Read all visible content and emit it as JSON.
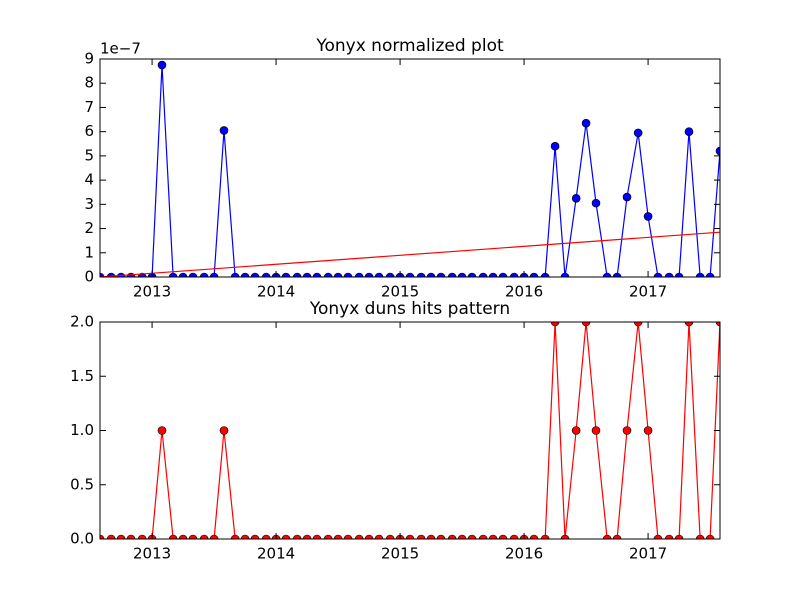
{
  "chart_data": [
    {
      "type": "line",
      "title": "Yonyx normalized plot",
      "y_offset_label": "1e−7",
      "x": [
        2012.58,
        2012.67,
        2012.75,
        2012.83,
        2012.92,
        2013.0,
        2013.08,
        2013.17,
        2013.25,
        2013.33,
        2013.42,
        2013.5,
        2013.58,
        2013.67,
        2013.75,
        2013.83,
        2013.92,
        2014.0,
        2014.08,
        2014.17,
        2014.25,
        2014.33,
        2014.42,
        2014.5,
        2014.58,
        2014.67,
        2014.75,
        2014.83,
        2014.92,
        2015.0,
        2015.08,
        2015.17,
        2015.25,
        2015.33,
        2015.42,
        2015.5,
        2015.58,
        2015.67,
        2015.75,
        2015.83,
        2015.92,
        2016.0,
        2016.08,
        2016.17,
        2016.25,
        2016.33,
        2016.42,
        2016.5,
        2016.58,
        2016.67,
        2016.75,
        2016.83,
        2016.92,
        2017.0,
        2017.08,
        2017.17,
        2017.25,
        2017.33,
        2017.42,
        2017.5,
        2017.58
      ],
      "series": [
        {
          "color": "#0000ff",
          "marker": true,
          "values": [
            0,
            0,
            0,
            0,
            0,
            0,
            8.75,
            0,
            0,
            0,
            0,
            0,
            6.05,
            0,
            0,
            0,
            0,
            0,
            0,
            0,
            0,
            0,
            0,
            0,
            0,
            0,
            0,
            0,
            0,
            0,
            0,
            0,
            0,
            0,
            0,
            0,
            0,
            0,
            0,
            0,
            0,
            0,
            0,
            0,
            5.4,
            0,
            3.25,
            6.35,
            3.05,
            0,
            0,
            3.3,
            5.95,
            2.5,
            0,
            0,
            0,
            6,
            0,
            0,
            5.2
          ]
        },
        {
          "color": "#ff0000",
          "marker": false,
          "x": [
            2012.58,
            2017.58
          ],
          "values": [
            0,
            1.85
          ]
        }
      ],
      "xlim": [
        2012.58,
        2017.58
      ],
      "xticks": [
        2013,
        2014,
        2015,
        2016,
        2017
      ],
      "ylim": [
        0,
        9
      ],
      "yticks": [
        0,
        1,
        2,
        3,
        4,
        5,
        6,
        7,
        8,
        9
      ]
    },
    {
      "type": "line",
      "title": "Yonyx duns hits pattern",
      "x": [
        2012.58,
        2012.67,
        2012.75,
        2012.83,
        2012.92,
        2013.0,
        2013.08,
        2013.17,
        2013.25,
        2013.33,
        2013.42,
        2013.5,
        2013.58,
        2013.67,
        2013.75,
        2013.83,
        2013.92,
        2014.0,
        2014.08,
        2014.17,
        2014.25,
        2014.33,
        2014.42,
        2014.5,
        2014.58,
        2014.67,
        2014.75,
        2014.83,
        2014.92,
        2015.0,
        2015.08,
        2015.17,
        2015.25,
        2015.33,
        2015.42,
        2015.5,
        2015.58,
        2015.67,
        2015.75,
        2015.83,
        2015.92,
        2016.0,
        2016.08,
        2016.17,
        2016.25,
        2016.33,
        2016.42,
        2016.5,
        2016.58,
        2016.67,
        2016.75,
        2016.83,
        2016.92,
        2017.0,
        2017.08,
        2017.17,
        2017.25,
        2017.33,
        2017.42,
        2017.5,
        2017.58
      ],
      "series": [
        {
          "color": "#ff0000",
          "marker": true,
          "values": [
            0,
            0,
            0,
            0,
            0,
            0,
            1,
            0,
            0,
            0,
            0,
            0,
            1,
            0,
            0,
            0,
            0,
            0,
            0,
            0,
            0,
            0,
            0,
            0,
            0,
            0,
            0,
            0,
            0,
            0,
            0,
            0,
            0,
            0,
            0,
            0,
            0,
            0,
            0,
            0,
            0,
            0,
            0,
            0,
            2,
            0,
            1,
            2,
            1,
            0,
            0,
            1,
            2,
            1,
            0,
            0,
            0,
            2,
            0,
            0,
            2
          ]
        }
      ],
      "xlim": [
        2012.58,
        2017.58
      ],
      "xticks": [
        2013,
        2014,
        2015,
        2016,
        2017
      ],
      "ylim": [
        0,
        2
      ],
      "yticks": [
        {
          "value": 0,
          "label": "0.0"
        },
        {
          "value": 0.5,
          "label": "0.5"
        },
        {
          "value": 1,
          "label": "1.0"
        },
        {
          "value": 1.5,
          "label": "1.5"
        },
        {
          "value": 2,
          "label": "2.0"
        }
      ]
    }
  ]
}
